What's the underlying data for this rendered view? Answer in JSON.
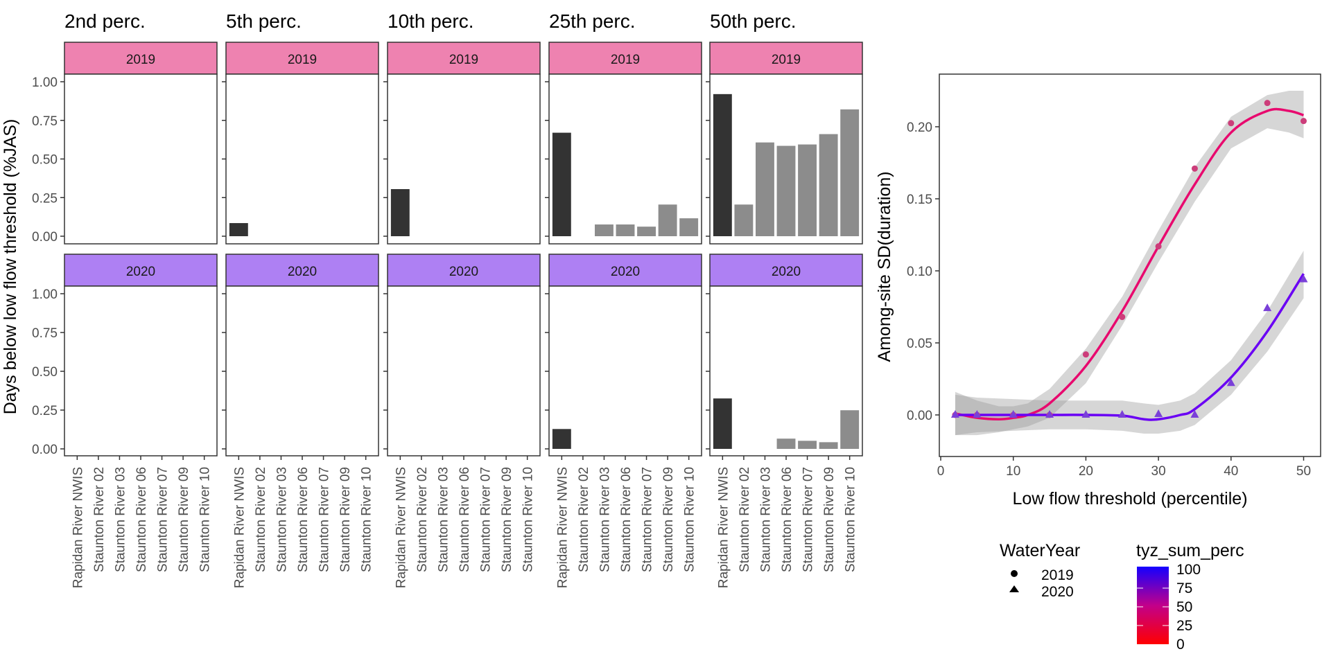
{
  "chart_data": [
    {
      "type": "bar",
      "layout": "faceted-grid",
      "ylabel": "Days below low flow threshold (%JAS)",
      "xlabel": "",
      "ylim": [
        0,
        1
      ],
      "yticks": [
        "0.00",
        "0.25",
        "0.50",
        "0.75",
        "1.00"
      ],
      "ytick_values": [
        0,
        0.25,
        0.5,
        0.75,
        1.0
      ],
      "categories": [
        "Rapidan River NWIS",
        "Staunton River 02",
        "Staunton River 03",
        "Staunton River 06",
        "Staunton River 07",
        "Staunton River 09",
        "Staunton River 10"
      ],
      "highlight_category": "Rapidan River NWIS",
      "colors": {
        "highlight": "#333333",
        "other": "#8c8c8c",
        "strip_2019": "#ee82b0",
        "strip_2020": "#ae80f3",
        "panel_border": "#333333"
      },
      "rows": [
        "2019",
        "2020"
      ],
      "columns": [
        {
          "title": "2nd perc.",
          "values": {
            "2019": [
              0,
              0,
              0,
              0,
              0,
              0,
              0
            ],
            "2020": [
              0,
              0,
              0,
              0,
              0,
              0,
              0
            ]
          }
        },
        {
          "title": "5th perc.",
          "values": {
            "2019": [
              0.085,
              0,
              0,
              0,
              0,
              0,
              0
            ],
            "2020": [
              0,
              0,
              0,
              0,
              0,
              0,
              0
            ]
          }
        },
        {
          "title": "10th perc.",
          "values": {
            "2019": [
              0.305,
              0,
              0,
              0,
              0,
              0,
              0
            ],
            "2020": [
              0,
              0,
              0,
              0,
              0,
              0,
              0
            ]
          }
        },
        {
          "title": "25th perc.",
          "values": {
            "2019": [
              0.67,
              0,
              0.076,
              0.076,
              0.062,
              0.205,
              0.116
            ],
            "2020": [
              0.128,
              0,
              0,
              0,
              0,
              0,
              0
            ]
          }
        },
        {
          "title": "50th perc.",
          "values": {
            "2019": [
              0.92,
              0.205,
              0.607,
              0.585,
              0.594,
              0.661,
              0.821
            ],
            "2020": [
              0.325,
              0,
              0,
              0.066,
              0.052,
              0.043,
              0.249
            ]
          }
        }
      ]
    },
    {
      "type": "scatter",
      "xlabel": "Low flow threshold (percentile)",
      "ylabel": "Among-site SD(duration)",
      "xlim": [
        -0.2,
        52.4
      ],
      "ylim": [
        -0.029,
        0.2365
      ],
      "xticks": [
        "0",
        "10",
        "20",
        "30",
        "40",
        "50"
      ],
      "xtick_values": [
        0,
        10,
        20,
        30,
        40,
        50
      ],
      "yticks": [
        "0.00",
        "0.05",
        "0.10",
        "0.15",
        "0.20"
      ],
      "ytick_values": [
        0,
        0.05,
        0.1,
        0.15,
        0.2
      ],
      "grid": false,
      "series": [
        {
          "name": "2019",
          "shape": "circle",
          "point_color": "#cc3d7a",
          "line_color": "#e8096e",
          "tyz_sum_perc_approx": 40,
          "x": [
            2,
            5,
            10,
            15,
            20,
            25,
            30,
            35,
            40,
            45,
            50
          ],
          "y": [
            0.0,
            0.0,
            0.0,
            0.0,
            0.042,
            0.068,
            0.117,
            0.171,
            0.2025,
            0.2165,
            0.204
          ],
          "smooth_x": [
            2,
            5,
            8,
            10,
            12,
            15,
            20,
            25,
            30,
            35,
            40,
            45,
            48,
            50
          ],
          "smooth_y": [
            0.001,
            -0.002,
            -0.003,
            -0.002,
            0.0,
            0.008,
            0.034,
            0.072,
            0.117,
            0.16,
            0.196,
            0.211,
            0.211,
            0.208
          ],
          "ribbon_lo": [
            -0.014,
            -0.014,
            -0.012,
            -0.01,
            -0.008,
            -0.002,
            0.022,
            0.062,
            0.106,
            0.148,
            0.185,
            0.199,
            0.196,
            0.192
          ],
          "ribbon_hi": [
            0.016,
            0.01,
            0.006,
            0.006,
            0.008,
            0.018,
            0.046,
            0.082,
            0.128,
            0.172,
            0.207,
            0.222,
            0.225,
            0.225
          ]
        },
        {
          "name": "2020",
          "shape": "triangle",
          "point_color": "#7a40d8",
          "line_color": "#6a00f4",
          "tyz_sum_perc_approx": 90,
          "x": [
            2,
            5,
            10,
            15,
            20,
            25,
            30,
            35,
            40,
            45,
            50
          ],
          "y": [
            0.0,
            0.0,
            0.0,
            0.0,
            0.0,
            0.0,
            0.0005,
            0.0,
            0.022,
            0.074,
            0.094
          ],
          "smooth_x": [
            2,
            5,
            10,
            15,
            20,
            25,
            28,
            30,
            33,
            35,
            40,
            45,
            50
          ],
          "smooth_y": [
            0.0,
            0.0,
            0.0,
            0.0,
            0.0,
            -0.0005,
            -0.003,
            -0.003,
            0.0,
            0.004,
            0.026,
            0.058,
            0.098
          ],
          "ribbon_lo": [
            -0.014,
            -0.012,
            -0.011,
            -0.01,
            -0.01,
            -0.011,
            -0.013,
            -0.013,
            -0.011,
            -0.007,
            0.014,
            0.044,
            0.081
          ],
          "ribbon_hi": [
            0.014,
            0.012,
            0.011,
            0.01,
            0.01,
            0.01,
            0.008,
            0.007,
            0.01,
            0.015,
            0.038,
            0.072,
            0.114
          ]
        }
      ],
      "legend": {
        "placement": "bottom",
        "shape_legend": {
          "title": "WaterYear",
          "entries": [
            {
              "label": "2019",
              "shape": "circle"
            },
            {
              "label": "2020",
              "shape": "triangle"
            }
          ]
        },
        "color_legend": {
          "title": "tyz_sum_perc",
          "low_color": "#ff0000",
          "mid_color": "#c2008a",
          "high_color": "#1400ff",
          "range": [
            0,
            100
          ],
          "ticks": [
            "0",
            "25",
            "50",
            "75",
            "100"
          ],
          "tick_values": [
            0,
            25,
            50,
            75,
            100
          ]
        }
      }
    }
  ]
}
